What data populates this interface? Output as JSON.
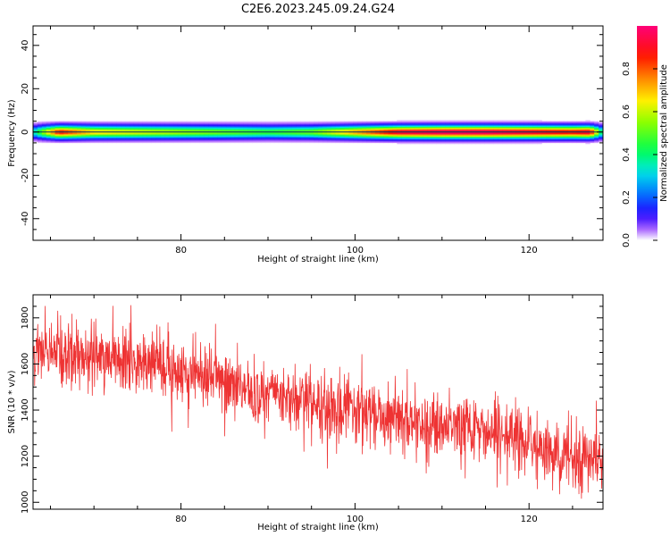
{
  "title": "C2E6.2023.245.09.24.G24",
  "chart_data": [
    {
      "type": "heatmap",
      "xlabel": "Height of straight line (km)",
      "ylabel": "Frequency (Hz)",
      "xlim": [
        63,
        128.5
      ],
      "ylim": [
        -50,
        49
      ],
      "xticks": [
        "80",
        "100",
        "120"
      ],
      "xtick_values": [
        80,
        100,
        120
      ],
      "yticks": [
        "40",
        "20",
        "0",
        "-20",
        "-40"
      ],
      "ytick_values": [
        40,
        20,
        0,
        -20,
        -40
      ],
      "band_center_hz": 0,
      "band_halfwidth_hz": 4,
      "ridge_profile": {
        "x": [
          63,
          64,
          66,
          70,
          75,
          80,
          85,
          90,
          95,
          100,
          105,
          110,
          115,
          120,
          125,
          127,
          128.5
        ],
        "amplitude": [
          0.3,
          0.5,
          0.85,
          0.65,
          0.6,
          0.55,
          0.5,
          0.45,
          0.5,
          0.7,
          0.9,
          0.95,
          0.95,
          0.9,
          0.85,
          0.9,
          0.3
        ]
      },
      "colorbar": {
        "label": "Normalized spectral amplitude",
        "range": [
          0,
          1
        ],
        "ticks": [
          "0.0",
          "0.2",
          "0.4",
          "0.6",
          "0.8"
        ],
        "tick_values": [
          0,
          0.2,
          0.4,
          0.6,
          0.8
        ],
        "colormap": "gist_rainbow"
      }
    },
    {
      "type": "line",
      "xlabel": "Height of straight line (km)",
      "ylabel": "SNR (10 * v/v)",
      "xlim": [
        63,
        128.5
      ],
      "ylim": [
        970,
        1900
      ],
      "xticks": [
        "80",
        "100",
        "120"
      ],
      "xtick_values": [
        80,
        100,
        120
      ],
      "yticks": [
        "1000",
        "1200",
        "1400",
        "1600",
        "1800"
      ],
      "ytick_values": [
        1000,
        1200,
        1400,
        1600,
        1800
      ],
      "color": "#ee3333",
      "series": [
        {
          "x_range": [
            63,
            128.5
          ],
          "trend_x": [
            63,
            70,
            75,
            80,
            85,
            90,
            95,
            100,
            105,
            110,
            115,
            120,
            125,
            128.5
          ],
          "trend_y": [
            1650,
            1640,
            1610,
            1560,
            1510,
            1470,
            1440,
            1400,
            1350,
            1320,
            1300,
            1260,
            1200,
            1180
          ],
          "noise_std": 70
        }
      ]
    }
  ]
}
